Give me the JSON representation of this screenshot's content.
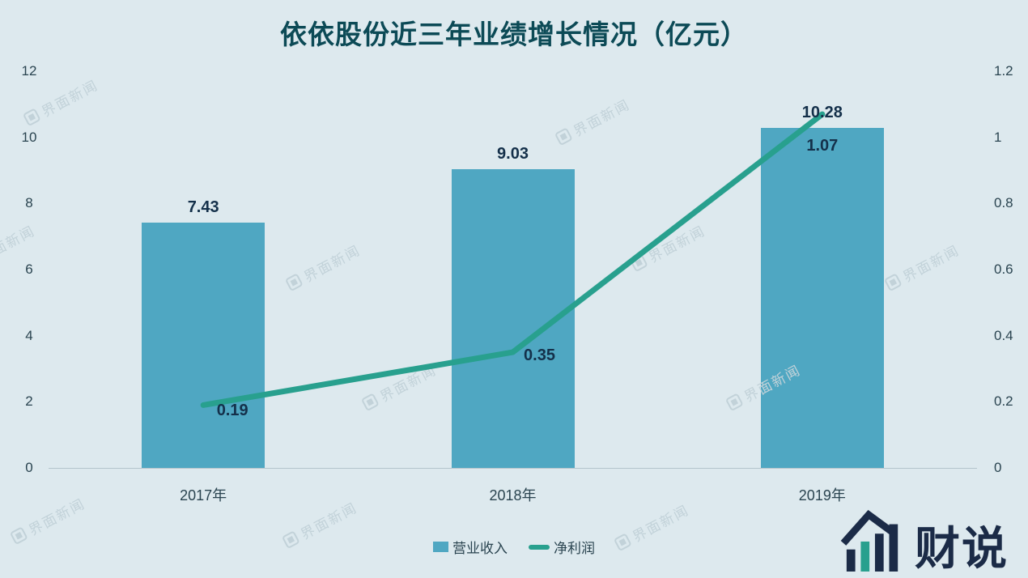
{
  "chart_data": {
    "type": "bar+line",
    "title": "依依股份近三年业绩增长情况（亿元）",
    "categories": [
      "2017年",
      "2018年",
      "2019年"
    ],
    "series": [
      {
        "name": "营业收入",
        "type": "bar",
        "axis": "left",
        "values": [
          7.43,
          9.03,
          10.28
        ],
        "labels": [
          "7.43",
          "9.03",
          "10.28"
        ],
        "color": "#4fa7c2"
      },
      {
        "name": "净利润",
        "type": "line",
        "axis": "right",
        "values": [
          0.19,
          0.35,
          1.07
        ],
        "labels": [
          "0.19",
          "0.35",
          "1.07"
        ],
        "color": "#28a08e"
      }
    ],
    "left_axis": {
      "min": 0,
      "max": 12,
      "ticks": [
        0,
        2,
        4,
        6,
        8,
        10,
        12
      ],
      "tick_labels": [
        "0",
        "2",
        "4",
        "6",
        "8",
        "10",
        "12"
      ]
    },
    "right_axis": {
      "min": 0,
      "max": 1.2,
      "ticks": [
        0,
        0.2,
        0.4,
        0.6,
        0.8,
        1.0,
        1.2
      ],
      "tick_labels": [
        "0",
        "0.2",
        "0.4",
        "0.6",
        "0.8",
        "1",
        "1.2"
      ]
    },
    "legend": [
      "营业收入",
      "净利润"
    ],
    "legend_position": "bottom",
    "grid": false
  },
  "watermark": {
    "text": "界面新闻"
  },
  "brand": {
    "text": "财说"
  },
  "colors": {
    "background": "#dde9ee",
    "bar": "#4fa7c2",
    "line": "#28a08e",
    "title": "#0c4a56",
    "tick": "#2a4450",
    "data_label": "#14304a",
    "watermark": "#c2d2d9",
    "brand": "#1b2b47"
  }
}
